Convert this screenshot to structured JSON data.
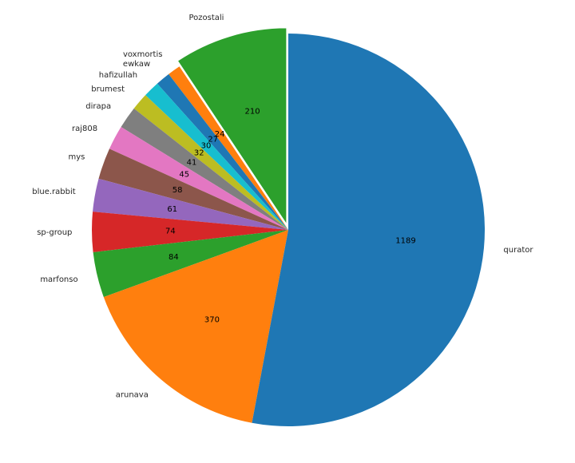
{
  "chart_data": {
    "type": "pie",
    "title": "",
    "legend": "none",
    "slices": [
      {
        "label": "Pozostali",
        "value": 210,
        "value_label": "210",
        "color": "#2ca02c",
        "exploded": true
      },
      {
        "label": "voxmortis",
        "value": 24,
        "value_label": "24",
        "color": "#ff7f0e",
        "exploded": false
      },
      {
        "label": "ewkaw",
        "value": 27,
        "value_label": "27",
        "color": "#1f77b4",
        "exploded": false
      },
      {
        "label": "hafizullah",
        "value": 30,
        "value_label": "30",
        "color": "#17becf",
        "exploded": false
      },
      {
        "label": "brumest",
        "value": 32,
        "value_label": "32",
        "color": "#bcbd22",
        "exploded": false
      },
      {
        "label": "dirapa",
        "value": 41,
        "value_label": "41",
        "color": "#7f7f7f",
        "exploded": false
      },
      {
        "label": "raj808",
        "value": 45,
        "value_label": "45",
        "color": "#e377c2",
        "exploded": false
      },
      {
        "label": "mys",
        "value": 58,
        "value_label": "58",
        "color": "#8c564b",
        "exploded": false
      },
      {
        "label": "blue.rabbit",
        "value": 61,
        "value_label": "61",
        "color": "#9467bd",
        "exploded": false
      },
      {
        "label": "sp-group",
        "value": 74,
        "value_label": "74",
        "color": "#d62728",
        "exploded": false
      },
      {
        "label": "marfonso",
        "value": 84,
        "value_label": "84",
        "color": "#2ca02c",
        "exploded": false
      },
      {
        "label": "arunava",
        "value": 370,
        "value_label": "370",
        "color": "#ff7f0e",
        "exploded": false
      },
      {
        "label": "qurator",
        "value": 1189,
        "value_label": "1189",
        "color": "#1f77b4",
        "exploded": false
      }
    ]
  }
}
